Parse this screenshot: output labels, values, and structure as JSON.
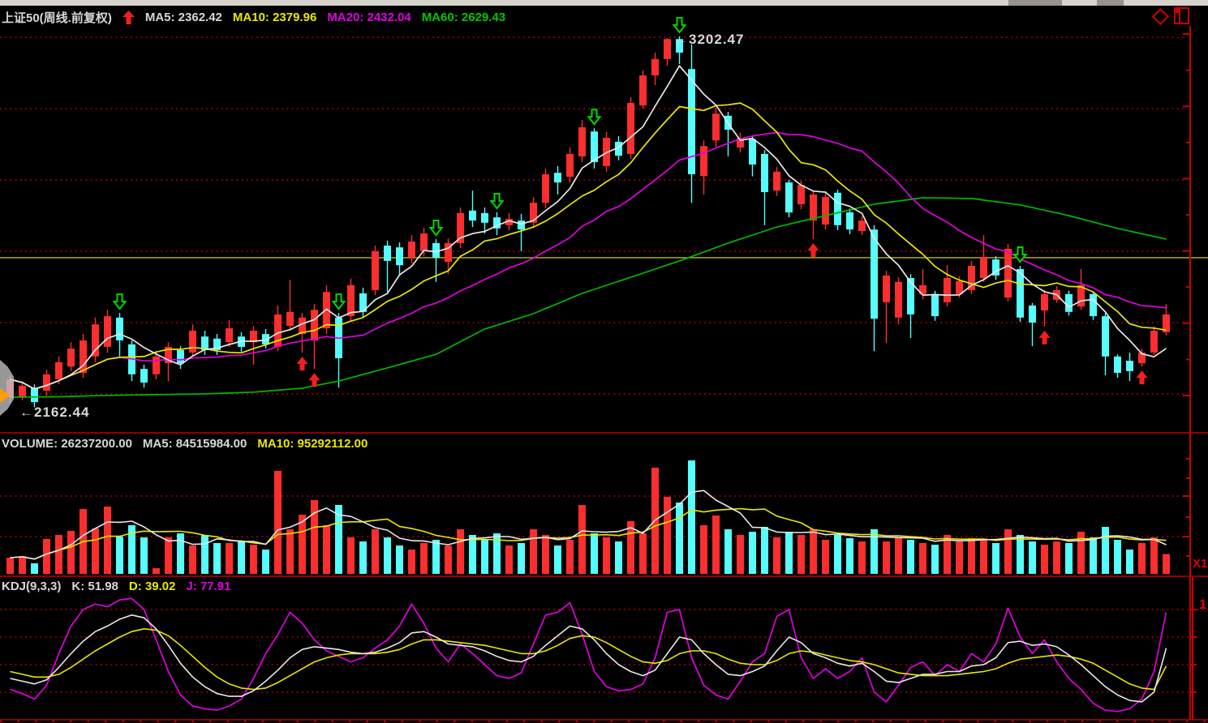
{
  "header": {
    "title": "上证50(周线.前复权)",
    "ma5": "MA5: 2362.42",
    "ma10": "MA10: 2379.96",
    "ma20": "MA20: 2432.04",
    "ma60": "MA60: 2629.43"
  },
  "volume_pane": {
    "volume": "VOLUME: 26237200.00",
    "ma5": "MA5: 84515984.00",
    "ma10": "MA10: 95292112.00",
    "scale_label": "X1"
  },
  "kdj_pane": {
    "title": "KDJ(9,3,3)",
    "k": "K: 51.98",
    "d": "D: 39.02",
    "j": "J: 77.91",
    "right_label": "1"
  },
  "annotations": {
    "high": "←3202.47",
    "low": "←2162.44"
  },
  "colors": {
    "up": "#fc2e2e",
    "down": "#55fdfd",
    "ma5": "#e8e8e8",
    "ma10": "#e8e800",
    "ma20": "#e000e0",
    "ma60": "#00b800",
    "grid": "#c00000",
    "axis": "#c80000",
    "separator": "#8f0000",
    "reference": "#bdbd00",
    "buy_marker": "#f21f1f",
    "sell_marker": "#00d800"
  },
  "chart_data": {
    "type": "candlestick",
    "title": "上证50 weekly (前复权)",
    "panes": [
      "price",
      "volume",
      "kdj"
    ],
    "price_gridlines": [
      3200,
      3000,
      2800,
      2600,
      2400,
      2200
    ],
    "reference_line": 2582,
    "high_label_value": 3202.47,
    "low_label_value": 2162.44,
    "candles": [
      [
        2191,
        2252,
        2175,
        2241
      ],
      [
        2191,
        2236,
        2182,
        2223
      ],
      [
        2218,
        2227,
        2162.44,
        2177
      ],
      [
        2209,
        2268,
        2195,
        2255
      ],
      [
        2241,
        2305,
        2227,
        2289
      ],
      [
        2277,
        2345,
        2264,
        2327
      ],
      [
        2259,
        2368,
        2245,
        2350
      ],
      [
        2305,
        2414,
        2289,
        2395
      ],
      [
        2332,
        2436,
        2316,
        2418
      ],
      [
        2414,
        2427,
        2305,
        2350
      ],
      [
        2339,
        2350,
        2236,
        2255
      ],
      [
        2270,
        2282,
        2218,
        2232
      ],
      [
        2255,
        2320,
        2241,
        2305
      ],
      [
        2286,
        2345,
        2236,
        2332
      ],
      [
        2323,
        2334,
        2270,
        2286
      ],
      [
        2316,
        2395,
        2305,
        2377
      ],
      [
        2361,
        2377,
        2309,
        2323
      ],
      [
        2355,
        2368,
        2309,
        2323
      ],
      [
        2345,
        2407,
        2332,
        2384
      ],
      [
        2361,
        2373,
        2318,
        2332
      ],
      [
        2345,
        2391,
        2282,
        2377
      ],
      [
        2368,
        2382,
        2327,
        2339
      ],
      [
        2332,
        2448,
        2320,
        2423
      ],
      [
        2391,
        2520,
        2377,
        2430
      ],
      [
        2368,
        2427,
        2316,
        2414
      ],
      [
        2350,
        2452,
        2270,
        2436
      ],
      [
        2384,
        2505,
        2368,
        2486
      ],
      [
        2414,
        2427,
        2218,
        2300
      ],
      [
        2418,
        2523,
        2405,
        2505
      ],
      [
        2482,
        2498,
        2414,
        2430
      ],
      [
        2491,
        2616,
        2477,
        2600
      ],
      [
        2616,
        2630,
        2486,
        2573
      ],
      [
        2611,
        2625,
        2532,
        2561
      ],
      [
        2582,
        2645,
        2566,
        2627
      ],
      [
        2600,
        2666,
        2586,
        2650
      ],
      [
        2623,
        2634,
        2514,
        2582
      ],
      [
        2570,
        2636,
        2536,
        2623
      ],
      [
        2623,
        2723,
        2609,
        2707
      ],
      [
        2714,
        2770,
        2668,
        2686
      ],
      [
        2707,
        2723,
        2650,
        2680
      ],
      [
        2695,
        2709,
        2645,
        2664
      ],
      [
        2673,
        2707,
        2659,
        2691
      ],
      [
        2686,
        2705,
        2600,
        2661
      ],
      [
        2680,
        2752,
        2664,
        2736
      ],
      [
        2736,
        2832,
        2720,
        2816
      ],
      [
        2820,
        2839,
        2759,
        2793
      ],
      [
        2809,
        2891,
        2793,
        2873
      ],
      [
        2866,
        2968,
        2850,
        2948
      ],
      [
        2936,
        2945,
        2832,
        2850
      ],
      [
        2839,
        2934,
        2823,
        2918
      ],
      [
        2907,
        2923,
        2855,
        2868
      ],
      [
        2873,
        3032,
        2859,
        3016
      ],
      [
        3009,
        3107,
        3000,
        3093
      ],
      [
        3093,
        3157,
        3066,
        3139
      ],
      [
        3139,
        3198,
        3120,
        3195
      ],
      [
        3195,
        3202.47,
        3125,
        3157
      ],
      [
        3111,
        3180,
        2736,
        2816
      ],
      [
        2811,
        2911,
        2759,
        2895
      ],
      [
        2911,
        3002,
        2893,
        2986
      ],
      [
        2980,
        2991,
        2866,
        2941
      ],
      [
        2891,
        2932,
        2877,
        2918
      ],
      [
        2914,
        2925,
        2810,
        2843
      ],
      [
        2873,
        2884,
        2673,
        2766
      ],
      [
        2770,
        2836,
        2755,
        2823
      ],
      [
        2793,
        2800,
        2695,
        2709
      ],
      [
        2732,
        2798,
        2718,
        2786
      ],
      [
        2686,
        2771,
        2634,
        2759
      ],
      [
        2675,
        2764,
        2661,
        2752
      ],
      [
        2764,
        2773,
        2659,
        2673
      ],
      [
        2709,
        2720,
        2648,
        2661
      ],
      [
        2657,
        2698,
        2645,
        2686
      ],
      [
        2661,
        2673,
        2320,
        2411
      ],
      [
        2457,
        2545,
        2343,
        2532
      ],
      [
        2414,
        2527,
        2395,
        2514
      ],
      [
        2525,
        2536,
        2357,
        2423
      ],
      [
        2480,
        2550,
        2466,
        2505
      ],
      [
        2480,
        2489,
        2405,
        2418
      ],
      [
        2457,
        2561,
        2445,
        2525
      ],
      [
        2480,
        2530,
        2470,
        2516
      ],
      [
        2491,
        2573,
        2480,
        2559
      ],
      [
        2525,
        2645,
        2514,
        2584
      ],
      [
        2577,
        2586,
        2520,
        2532
      ],
      [
        2470,
        2620,
        2459,
        2607
      ],
      [
        2550,
        2559,
        2402,
        2414
      ],
      [
        2448,
        2455,
        2334,
        2400
      ],
      [
        2434,
        2491,
        2389,
        2480
      ],
      [
        2464,
        2502,
        2455,
        2491
      ],
      [
        2480,
        2489,
        2420,
        2430
      ],
      [
        2445,
        2550,
        2436,
        2505
      ],
      [
        2480,
        2486,
        2407,
        2418
      ],
      [
        2418,
        2427,
        2252,
        2305
      ],
      [
        2305,
        2311,
        2245,
        2259
      ],
      [
        2293,
        2316,
        2236,
        2264
      ],
      [
        2286,
        2327,
        2277,
        2316
      ],
      [
        2316,
        2389,
        2309,
        2377
      ],
      [
        2373,
        2452,
        2364,
        2423
      ]
    ],
    "volumes": [
      21400000,
      23540000,
      13910000,
      46010000,
      51360000,
      56710000,
      85600000,
      59920000,
      88810000,
      49220000,
      64200000,
      48150000,
      7490000,
      48150000,
      53500000,
      37450000,
      51360000,
      40660000,
      40660000,
      42800000,
      38520000,
      32100000,
      135890000,
      58850000,
      78110000,
      97370000,
      64200000,
      90950000,
      48150000,
      42800000,
      58850000,
      48150000,
      37450000,
      32100000,
      40660000,
      44940000,
      37450000,
      58850000,
      51360000,
      44940000,
      53500000,
      37450000,
      40660000,
      58850000,
      51360000,
      37450000,
      44940000,
      90950000,
      53500000,
      48150000,
      42800000,
      69550000,
      53500000,
      140170000,
      101650000,
      94160000,
      149800000,
      64200000,
      77040000,
      58850000,
      51360000,
      55640000,
      62060000,
      48150000,
      55640000,
      51360000,
      58850000,
      44940000,
      51360000,
      47080000,
      42800000,
      58850000,
      42800000,
      48150000,
      44940000,
      40660000,
      38520000,
      51360000,
      42800000,
      47080000,
      44940000,
      40660000,
      58850000,
      51360000,
      42800000,
      38520000,
      42800000,
      40660000,
      55640000,
      48150000,
      62060000,
      44940000,
      32100000,
      40660000,
      48150000,
      26237200
    ],
    "volume_gridlines": [
      102720000,
      49220000
    ],
    "ma60_samples": [
      [
        0,
        2191
      ],
      [
        4,
        2192
      ],
      [
        8,
        2196
      ],
      [
        12,
        2198
      ],
      [
        16,
        2200
      ],
      [
        20,
        2205
      ],
      [
        24,
        2216
      ],
      [
        27,
        2236
      ],
      [
        31,
        2273
      ],
      [
        35,
        2311
      ],
      [
        39,
        2382
      ],
      [
        43,
        2425
      ],
      [
        47,
        2482
      ],
      [
        51,
        2527
      ],
      [
        55,
        2573
      ],
      [
        59,
        2623
      ],
      [
        63,
        2668
      ],
      [
        67,
        2700
      ],
      [
        71,
        2732
      ],
      [
        75,
        2750
      ],
      [
        79,
        2748
      ],
      [
        83,
        2730
      ],
      [
        87,
        2700
      ],
      [
        91,
        2664
      ],
      [
        95,
        2634
      ]
    ],
    "buy_marker_indices": [
      24,
      25,
      66,
      85,
      93
    ],
    "sell_marker_indices": [
      9,
      27,
      35,
      40,
      48,
      55,
      83
    ],
    "kdj": {
      "gridlines": [
        20,
        40,
        60,
        80
      ],
      "k": [
        30,
        28,
        26,
        29,
        38,
        48,
        57,
        64,
        68,
        73,
        76,
        74,
        66,
        54,
        41,
        31,
        24,
        19,
        17,
        17,
        21,
        28,
        36,
        45,
        51,
        53,
        52,
        51,
        49,
        48,
        49,
        52,
        56,
        63,
        64,
        60,
        55,
        54,
        53,
        50,
        46,
        43,
        42,
        46,
        54,
        61,
        68,
        66,
        58,
        48,
        40,
        35,
        32,
        36,
        48,
        60,
        58,
        48,
        40,
        33,
        32,
        35,
        39,
        50,
        60,
        56,
        48,
        45,
        41,
        39,
        41,
        35,
        28,
        27,
        30,
        33,
        33,
        35,
        35,
        39,
        40,
        45,
        56,
        57,
        54,
        55,
        53,
        47,
        40,
        32,
        24,
        18,
        14,
        13,
        20,
        51.98
      ],
      "d": [
        35,
        33,
        31,
        31,
        33,
        38,
        44,
        50,
        55,
        60,
        64,
        66,
        65,
        61,
        54,
        46,
        38,
        31,
        26,
        23,
        22,
        23,
        27,
        32,
        37,
        42,
        45,
        47,
        48,
        48,
        48,
        49,
        51,
        55,
        58,
        58,
        57,
        56,
        55,
        54,
        52,
        50,
        48,
        48,
        50,
        54,
        59,
        61,
        60,
        56,
        51,
        46,
        42,
        41,
        43,
        48,
        50,
        50,
        48,
        44,
        41,
        40,
        40,
        43,
        48,
        50,
        49,
        47,
        45,
        43,
        42,
        40,
        37,
        34,
        33,
        32,
        32,
        32,
        33,
        34,
        35,
        37,
        41,
        44,
        45,
        46,
        47,
        46,
        44,
        41,
        36,
        31,
        26,
        23,
        22,
        39.02
      ],
      "j": [
        22,
        19,
        15,
        25,
        48,
        68,
        80,
        84,
        82,
        87,
        88,
        80,
        58,
        35,
        18,
        10,
        8,
        7,
        10,
        15,
        30,
        48,
        62,
        78,
        70,
        58,
        50,
        46,
        42,
        45,
        52,
        58,
        68,
        84,
        70,
        52,
        42,
        55,
        48,
        40,
        32,
        30,
        34,
        55,
        76,
        78,
        85,
        62,
        35,
        24,
        21,
        22,
        26,
        45,
        78,
        80,
        45,
        25,
        18,
        15,
        28,
        42,
        48,
        75,
        80,
        45,
        30,
        37,
        30,
        35,
        45,
        20,
        13,
        25,
        38,
        42,
        32,
        40,
        35,
        48,
        42,
        55,
        81,
        60,
        48,
        58,
        42,
        30,
        22,
        12,
        7,
        6,
        8,
        15,
        35,
        77.91
      ]
    }
  }
}
